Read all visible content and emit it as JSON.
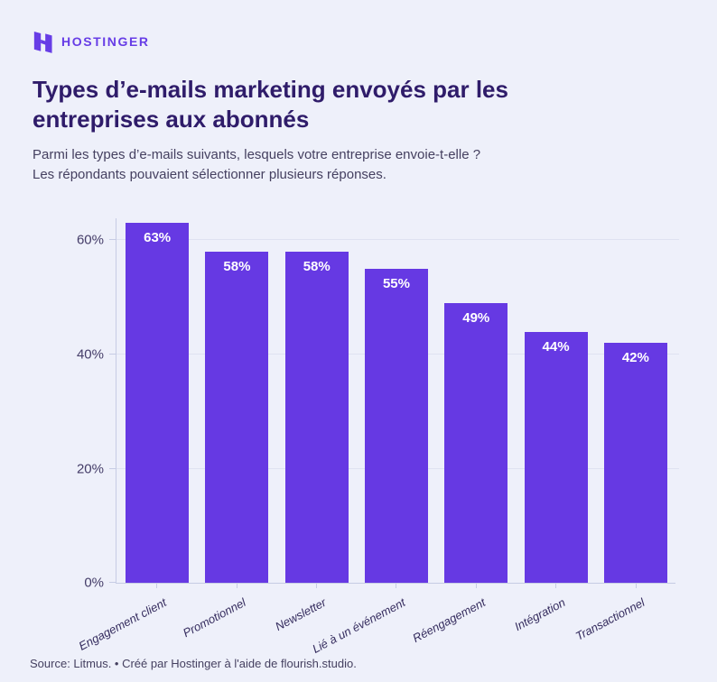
{
  "brand": {
    "name": "HOSTINGER"
  },
  "header": {
    "title_line1": "Types d’e-mails marketing envoyés par les",
    "title_line2": "entreprises aux abonnés",
    "subtitle_line1": "Parmi les types d’e-mails suivants, lesquels votre entreprise envoie-t-elle ?",
    "subtitle_line2": "Les répondants pouvaient sélectionner plusieurs réponses."
  },
  "chart_data": {
    "type": "bar",
    "title": "Types d’e-mails marketing envoyés par les entreprises aux abonnés",
    "categories": [
      "Engagement client",
      "Promotionnel",
      "Newsletter",
      "Lié à un événement",
      "Réengagement",
      "Intégration",
      "Transactionnel"
    ],
    "values": [
      63,
      58,
      58,
      55,
      49,
      44,
      42
    ],
    "value_labels": [
      "63%",
      "58%",
      "58%",
      "55%",
      "49%",
      "44%",
      "42%"
    ],
    "xlabel": "",
    "ylabel": "",
    "y_ticks": [
      {
        "value": 0,
        "label": "0%"
      },
      {
        "value": 20,
        "label": "20%"
      },
      {
        "value": 40,
        "label": "40%"
      },
      {
        "value": 60,
        "label": "60%"
      }
    ],
    "ylim": [
      0,
      64
    ],
    "grid": true,
    "legend_position": "none",
    "bar_color": "#6639e3"
  },
  "footer": {
    "source": "Source: Litmus. • Créé par Hostinger à l'aide de flourish.studio."
  },
  "colors": {
    "background": "#eef0fa",
    "brand_purple": "#673de6",
    "bar": "#6639e3",
    "title_text": "#2f1c6a",
    "body_text": "#454060",
    "axis_line": "#c6cce4",
    "gridline": "#dfe2f1",
    "bar_value_text": "#ffffff"
  }
}
